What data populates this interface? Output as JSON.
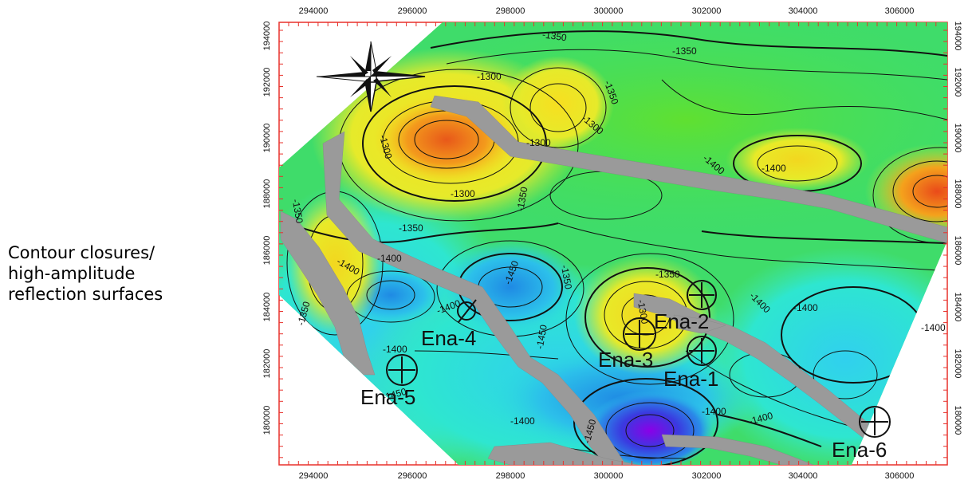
{
  "caption": {
    "lines": [
      "Contour closures/",
      "high-amplitude",
      "reflection surfaces"
    ]
  },
  "map": {
    "x_ticks": [
      "294000",
      "296000",
      "298000",
      "300000",
      "302000",
      "304000",
      "306000"
    ],
    "y_ticks": [
      "194000",
      "192000",
      "190000",
      "188000",
      "186000",
      "184000",
      "182000",
      "180000"
    ],
    "contour_labels": [
      "-1350",
      "-1350",
      "-1300",
      "-1350",
      "-1300",
      "-1300",
      "-1300",
      "-1350",
      "-1300",
      "-1400",
      "-1400",
      "-1350",
      "-1350",
      "-1400",
      "-1400",
      "-1450",
      "-1350",
      "-1350",
      "-1300",
      "-1400",
      "-1400",
      "-1400",
      "-1450",
      "-1350",
      "-1450",
      "-1400",
      "-1400",
      "-1400",
      "-1400",
      "-1450",
      "-1400"
    ],
    "wells": [
      {
        "name": "Ena-4",
        "symbol": "dry"
      },
      {
        "name": "Ena-3",
        "symbol": "oil"
      },
      {
        "name": "Ena-1",
        "symbol": "oil"
      },
      {
        "name": "Ena-2",
        "symbol": "oil"
      },
      {
        "name": "Ena-5",
        "symbol": "oil"
      },
      {
        "name": "Ena-6",
        "symbol": "oil"
      }
    ],
    "colors": {
      "frame": "#e8312b",
      "fault": "#9a9a9a",
      "deep": "#6b00c8",
      "high": "#e8601a"
    }
  }
}
